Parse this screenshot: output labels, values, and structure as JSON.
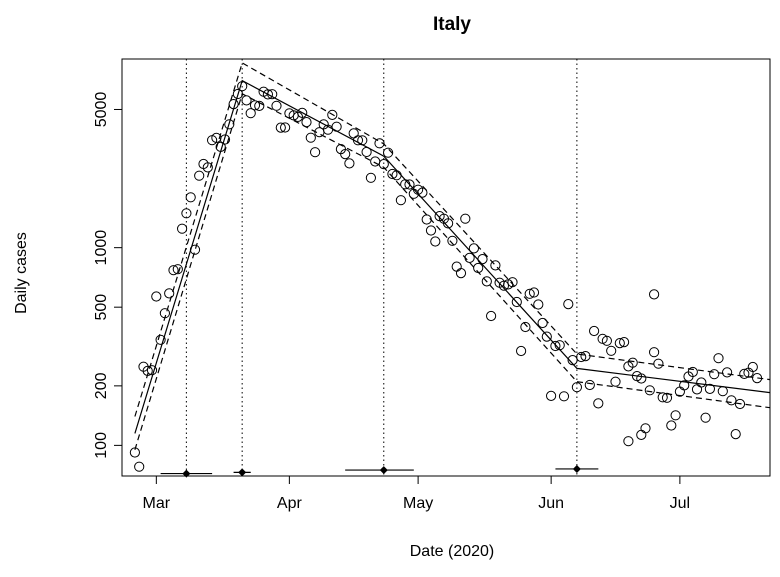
{
  "chart_data": {
    "type": "scatter",
    "title": "Italy",
    "xlabel": "Date (2020)",
    "ylabel": "Daily cases",
    "y_scale": "log",
    "ylim": [
      70,
      9000
    ],
    "xlim": [
      "2020-02-22",
      "2020-07-22"
    ],
    "x_ticks": [
      {
        "date": "2020-03-01",
        "label": "Mar"
      },
      {
        "date": "2020-04-01",
        "label": "Apr"
      },
      {
        "date": "2020-05-01",
        "label": "May"
      },
      {
        "date": "2020-06-01",
        "label": "Jun"
      },
      {
        "date": "2020-07-01",
        "label": "Jul"
      }
    ],
    "y_ticks": [
      100,
      200,
      500,
      1000,
      5000
    ],
    "breakpoints": [
      "2020-03-08",
      "2020-03-21",
      "2020-04-23",
      "2020-06-07"
    ],
    "breakpoint_intervals": [
      {
        "date": "2020-03-08",
        "low": "2020-03-02",
        "high": "2020-03-14",
        "y": 72
      },
      {
        "date": "2020-03-21",
        "low": "2020-03-19",
        "high": "2020-03-23",
        "y": 73
      },
      {
        "date": "2020-04-23",
        "low": "2020-04-14",
        "high": "2020-04-30",
        "y": 75
      },
      {
        "date": "2020-06-07",
        "low": "2020-06-02",
        "high": "2020-06-12",
        "y": 76
      }
    ],
    "fit": {
      "name": "",
      "points": [
        [
          "2020-02-25",
          115
        ],
        [
          "2020-03-21",
          7000
        ],
        [
          "2020-04-23",
          2900
        ],
        [
          "2020-06-07",
          245
        ],
        [
          "2020-07-22",
          185
        ]
      ]
    },
    "fit_lower": {
      "name": "",
      "points": [
        [
          "2020-02-25",
          95
        ],
        [
          "2020-03-21",
          6000
        ],
        [
          "2020-04-23",
          2550
        ],
        [
          "2020-06-07",
          210
        ],
        [
          "2020-07-22",
          155
        ]
      ]
    },
    "fit_upper": {
      "name": "",
      "points": [
        [
          "2020-02-25",
          140
        ],
        [
          "2020-03-21",
          8600
        ],
        [
          "2020-04-23",
          3350
        ],
        [
          "2020-06-07",
          290
        ],
        [
          "2020-07-22",
          215
        ]
      ]
    },
    "series": [
      {
        "name": "",
        "points": [
          [
            "2020-02-25",
            92
          ],
          [
            "2020-02-26",
            78
          ],
          [
            "2020-02-27",
            250
          ],
          [
            "2020-02-28",
            238
          ],
          [
            "2020-02-29",
            240
          ],
          [
            "2020-03-01",
            566
          ],
          [
            "2020-03-02",
            342
          ],
          [
            "2020-03-03",
            466
          ],
          [
            "2020-03-04",
            587
          ],
          [
            "2020-03-05",
            769
          ],
          [
            "2020-03-06",
            778
          ],
          [
            "2020-03-07",
            1247
          ],
          [
            "2020-03-08",
            1492
          ],
          [
            "2020-03-09",
            1797
          ],
          [
            "2020-03-10",
            977
          ],
          [
            "2020-03-11",
            2313
          ],
          [
            "2020-03-12",
            2651
          ],
          [
            "2020-03-13",
            2547
          ],
          [
            "2020-03-14",
            3497
          ],
          [
            "2020-03-15",
            3590
          ],
          [
            "2020-03-16",
            3233
          ],
          [
            "2020-03-17",
            3526
          ],
          [
            "2020-03-18",
            4207
          ],
          [
            "2020-03-19",
            5322
          ],
          [
            "2020-03-20",
            5986
          ],
          [
            "2020-03-21",
            6557
          ],
          [
            "2020-03-22",
            5560
          ],
          [
            "2020-03-23",
            4789
          ],
          [
            "2020-03-24",
            5249
          ],
          [
            "2020-03-25",
            5210
          ],
          [
            "2020-03-26",
            6153
          ],
          [
            "2020-03-27",
            5959
          ],
          [
            "2020-03-28",
            5974
          ],
          [
            "2020-03-29",
            5217
          ],
          [
            "2020-03-30",
            4050
          ],
          [
            "2020-03-31",
            4053
          ],
          [
            "2020-04-01",
            4782
          ],
          [
            "2020-04-02",
            4668
          ],
          [
            "2020-04-03",
            4585
          ],
          [
            "2020-04-04",
            4805
          ],
          [
            "2020-04-05",
            4316
          ],
          [
            "2020-04-06",
            3599
          ],
          [
            "2020-04-07",
            3039
          ],
          [
            "2020-04-08",
            3836
          ],
          [
            "2020-04-09",
            4204
          ],
          [
            "2020-04-10",
            3951
          ],
          [
            "2020-04-11",
            4694
          ],
          [
            "2020-04-12",
            4092
          ],
          [
            "2020-04-13",
            3153
          ],
          [
            "2020-04-14",
            2972
          ],
          [
            "2020-04-15",
            2667
          ],
          [
            "2020-04-16",
            3786
          ],
          [
            "2020-04-17",
            3493
          ],
          [
            "2020-04-18",
            3491
          ],
          [
            "2020-04-19",
            3047
          ],
          [
            "2020-04-20",
            2256
          ],
          [
            "2020-04-21",
            2729
          ],
          [
            "2020-04-22",
            3370
          ],
          [
            "2020-04-23",
            2646
          ],
          [
            "2020-04-24",
            3021
          ],
          [
            "2020-04-25",
            2357
          ],
          [
            "2020-04-26",
            2324
          ],
          [
            "2020-04-27",
            1739
          ],
          [
            "2020-04-28",
            2091
          ],
          [
            "2020-04-29",
            2086
          ],
          [
            "2020-04-30",
            1872
          ],
          [
            "2020-05-01",
            1965
          ],
          [
            "2020-05-02",
            1900
          ],
          [
            "2020-05-03",
            1389
          ],
          [
            "2020-05-04",
            1221
          ],
          [
            "2020-05-05",
            1075
          ],
          [
            "2020-05-06",
            1444
          ],
          [
            "2020-05-07",
            1401
          ],
          [
            "2020-05-08",
            1327
          ],
          [
            "2020-05-09",
            1083
          ],
          [
            "2020-05-10",
            802
          ],
          [
            "2020-05-11",
            744
          ],
          [
            "2020-05-12",
            1402
          ],
          [
            "2020-05-13",
            888
          ],
          [
            "2020-05-14",
            992
          ],
          [
            "2020-05-15",
            789
          ],
          [
            "2020-05-16",
            875
          ],
          [
            "2020-05-17",
            675
          ],
          [
            "2020-05-18",
            451
          ],
          [
            "2020-05-19",
            813
          ],
          [
            "2020-05-20",
            665
          ],
          [
            "2020-05-21",
            642
          ],
          [
            "2020-05-22",
            652
          ],
          [
            "2020-05-23",
            669
          ],
          [
            "2020-05-24",
            531
          ],
          [
            "2020-05-25",
            300
          ],
          [
            "2020-05-26",
            397
          ],
          [
            "2020-05-27",
            584
          ],
          [
            "2020-05-28",
            593
          ],
          [
            "2020-05-29",
            516
          ],
          [
            "2020-05-30",
            416
          ],
          [
            "2020-05-31",
            355
          ],
          [
            "2020-06-01",
            178
          ],
          [
            "2020-06-02",
            318
          ],
          [
            "2020-06-03",
            321
          ],
          [
            "2020-06-04",
            177
          ],
          [
            "2020-06-05",
            518
          ],
          [
            "2020-06-06",
            270
          ],
          [
            "2020-06-07",
            197
          ],
          [
            "2020-06-08",
            280
          ],
          [
            "2020-06-09",
            283
          ],
          [
            "2020-06-10",
            202
          ],
          [
            "2020-06-11",
            379
          ],
          [
            "2020-06-12",
            163
          ],
          [
            "2020-06-13",
            346
          ],
          [
            "2020-06-14",
            338
          ],
          [
            "2020-06-15",
            301
          ],
          [
            "2020-06-16",
            210
          ],
          [
            "2020-06-17",
            329
          ],
          [
            "2020-06-18",
            333
          ],
          [
            "2020-06-19",
            251
          ],
          [
            "2020-06-20",
            262
          ],
          [
            "2020-06-21",
            224
          ],
          [
            "2020-06-22",
            218
          ],
          [
            "2020-06-23",
            122
          ],
          [
            "2020-06-24",
            190
          ],
          [
            "2020-06-25",
            296
          ],
          [
            "2020-06-26",
            259
          ],
          [
            "2020-06-27",
            175
          ],
          [
            "2020-06-28",
            174
          ],
          [
            "2020-06-29",
            126
          ],
          [
            "2020-06-30",
            142
          ],
          [
            "2020-07-01",
            187
          ],
          [
            "2020-07-02",
            201
          ],
          [
            "2020-07-03",
            223
          ],
          [
            "2020-07-04",
            235
          ],
          [
            "2020-07-05",
            192
          ],
          [
            "2020-07-06",
            208
          ],
          [
            "2020-07-07",
            138
          ],
          [
            "2020-07-08",
            193
          ],
          [
            "2020-07-09",
            229
          ],
          [
            "2020-07-10",
            276
          ],
          [
            "2020-07-11",
            188
          ],
          [
            "2020-07-12",
            234
          ],
          [
            "2020-07-13",
            169
          ],
          [
            "2020-07-14",
            114
          ],
          [
            "2020-07-15",
            162
          ],
          [
            "2020-07-16",
            230
          ],
          [
            "2020-07-17",
            233
          ],
          [
            "2020-07-18",
            249
          ],
          [
            "2020-07-19",
            219
          ],
          [
            "2020-06-25",
            580
          ],
          [
            "2020-06-22",
            113
          ],
          [
            "2020-06-19",
            105
          ]
        ]
      }
    ]
  }
}
